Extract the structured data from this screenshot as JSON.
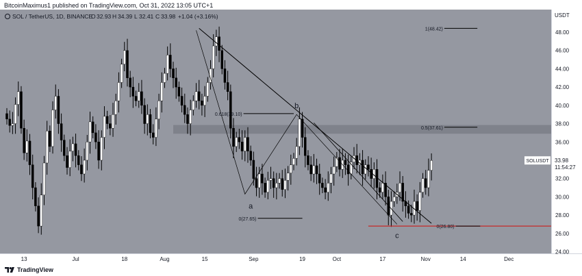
{
  "caption": "BitcoinMaximus1 published on TradingView.com, Oct 31, 2022 13:05 UTC+1",
  "footer": {
    "brand": "TradingView"
  },
  "colors": {
    "plot_bg": "#9598a1",
    "candle_up": "#ffffff",
    "candle_down": "#000000",
    "resistance_zone": "#7b7e87",
    "support_line": "#c62828",
    "badge_bg": "#ffffff"
  },
  "chart_data": {
    "type": "candlestick",
    "header": {
      "symbol": "SOL / TetherUS, 1D, BINANCE",
      "open_label": "O",
      "open": "32.93",
      "high_label": "H",
      "high": "34.39",
      "low_label": "L",
      "low": "32.41",
      "close_label": "C",
      "close": "33.98",
      "change": "+1.04 (+3.16%)"
    },
    "y_axis": {
      "label": "USDT",
      "min": 24,
      "max": 50,
      "ticks": [
        "24.00",
        "26.00",
        "28.00",
        "30.00",
        "32.00",
        "34.00",
        "36.00",
        "38.00",
        "40.00",
        "42.00",
        "44.00",
        "46.00",
        "48.00"
      ]
    },
    "x_axis": {
      "start_day": 1,
      "ticks": [
        {
          "label": "13",
          "day": 7
        },
        {
          "label": "Jul",
          "day": 25
        },
        {
          "label": "18",
          "day": 42
        },
        {
          "label": "Aug",
          "day": 56
        },
        {
          "label": "15",
          "day": 70
        },
        {
          "label": "Sep",
          "day": 87
        },
        {
          "label": "19",
          "day": 104
        },
        {
          "label": "Oct",
          "day": 116
        },
        {
          "label": "17",
          "day": 132
        },
        {
          "label": "Nov",
          "day": 147
        },
        {
          "label": "14",
          "day": 160
        },
        {
          "label": "Dec",
          "day": 176
        }
      ]
    },
    "price_badge": {
      "symbol": "SOLUSDT",
      "price": "33.98",
      "countdown": "11:54:27"
    },
    "closes": [
      38.5,
      37.8,
      38.0,
      40.1,
      41.5,
      37.5,
      34.8,
      36.1,
      33.5,
      31.0,
      29.0,
      26.8,
      30.2,
      33.7,
      37.2,
      35.5,
      39.5,
      41.0,
      38.0,
      36.2,
      34.5,
      33.2,
      35.0,
      35.8,
      34.5,
      33.5,
      32.5,
      34.0,
      36.0,
      38.2,
      37.0,
      36.0,
      34.0,
      36.5,
      38.8,
      38.0,
      37.5,
      39.0,
      40.5,
      42.5,
      44.5,
      46.0,
      43.0,
      42.0,
      41.0,
      40.5,
      41.5,
      40.0,
      38.0,
      39.0,
      37.0,
      36.5,
      38.5,
      40.5,
      42.5,
      43.5,
      45.5,
      44.0,
      43.0,
      42.0,
      41.0,
      40.0,
      39.0,
      38.0,
      39.5,
      40.5,
      41.5,
      40.5,
      40.0,
      41.0,
      42.5,
      44.0,
      46.5,
      47.5,
      46.0,
      44.0,
      42.5,
      41.5,
      37.5,
      35.5,
      36.5,
      36.0,
      35.0,
      36.5,
      35.0,
      34.0,
      32.0,
      31.0,
      32.5,
      31.5,
      30.5,
      31.8,
      32.0,
      31.0,
      31.5,
      32.0,
      30.8,
      31.8,
      32.6,
      33.5,
      34.2,
      35.5,
      38.5,
      36.5,
      34.5,
      33.5,
      32.5,
      33.4,
      32.5,
      31.5,
      31.0,
      30.5,
      31.5,
      32.5,
      33.3,
      34.3,
      33.0,
      34.0,
      33.5,
      32.5,
      33.8,
      34.5,
      33.5,
      34.0,
      32.5,
      33.5,
      33.0,
      32.0,
      33.0,
      31.0,
      30.5,
      31.5,
      30.0,
      28.0,
      29.5,
      30.0,
      30.5,
      31.5,
      29.5,
      29.0,
      28.2,
      28.0,
      29.5,
      28.5,
      30.5,
      32.0,
      31.0,
      32.9,
      33.98
    ],
    "annotations": {
      "trendline": {
        "from": {
          "day": 68,
          "price": 48.42
        },
        "to": {
          "day": 149,
          "price": 27.1
        }
      },
      "lower_channel": {
        "from": {
          "day": 108,
          "price": 38.1
        },
        "to": {
          "day": 139,
          "price": 27.3
        }
      },
      "wave_path": [
        {
          "day": 67,
          "price": 48.2
        },
        {
          "day": 84,
          "price": 30.3
        },
        {
          "day": 102,
          "price": 39.0
        },
        {
          "day": 137,
          "price": 27.0
        }
      ],
      "wave_labels": [
        {
          "text": "a",
          "day": 86,
          "price": 29.0
        },
        {
          "text": "b",
          "day": 102,
          "price": 40.0
        },
        {
          "text": "c",
          "day": 137,
          "price": 25.8
        }
      ],
      "resistance_zone": {
        "low": 36.9,
        "high": 37.85,
        "start_day": 59
      },
      "fib_levels": [
        {
          "label": "1(48.42)",
          "price": 48.42,
          "day_start": 153,
          "day_end": 165
        },
        {
          "label": "0.5(37.61)",
          "price": 37.61,
          "day_start": 153,
          "day_end": 165
        },
        {
          "label": "0.618(39.10)",
          "price": 39.1,
          "day_start": 83,
          "day_end": 101
        },
        {
          "label": "0(27.65)",
          "price": 27.65,
          "day_start": 88,
          "day_end": 104
        },
        {
          "label": "0(26.80)",
          "price": 26.8,
          "day_start": 157,
          "day_end": 166
        }
      ],
      "support_line": {
        "price": 26.8,
        "start_day": 127
      }
    }
  }
}
